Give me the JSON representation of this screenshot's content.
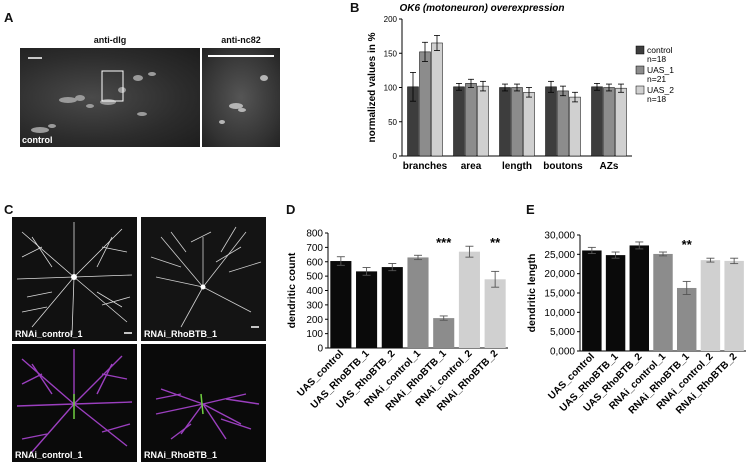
{
  "panels": {
    "a": {
      "letter": "A",
      "title_left": "anti-dlg",
      "title_right": "anti-nc82",
      "corner_label": "control"
    },
    "b": {
      "letter": "B"
    },
    "c": {
      "letter": "C",
      "labels": [
        "RNAi_control_1",
        "RNAi_RhoBTB_1",
        "RNAi_control_1",
        "RNAi_RhoBTB_1"
      ]
    },
    "d": {
      "letter": "D"
    },
    "e": {
      "letter": "E"
    }
  },
  "colors": {
    "black": "#0a0a0a",
    "dark": "#3d3d3d",
    "mid": "#8c8c8c",
    "light": "#d0d0d0",
    "magenta": "#9b3fbf",
    "green": "#6fcf3f"
  },
  "chart_data": [
    {
      "type": "bar",
      "title": "OK6 (motoneuron) overexpression",
      "ylabel": "normalized values in %",
      "categories": [
        "branches",
        "area",
        "length",
        "boutons",
        "AZs"
      ],
      "ylim": [
        0,
        200
      ],
      "yticks": [
        0,
        50,
        100,
        150,
        200
      ],
      "grid": false,
      "legend_position": "right",
      "series": [
        {
          "name": "control n=18",
          "legend_lines": [
            "control",
            "n=18"
          ],
          "color": "#3d3d3d",
          "values": [
            101,
            101,
            100,
            101,
            101
          ],
          "errors": [
            21,
            5,
            5,
            8,
            5
          ]
        },
        {
          "name": "UAS_1 n=21",
          "legend_lines": [
            "UAS_1",
            "n=21"
          ],
          "color": "#8c8c8c",
          "values": [
            152,
            106,
            100,
            95,
            100
          ],
          "errors": [
            14,
            6,
            5,
            7,
            5
          ]
        },
        {
          "name": "UAS_2 n=18",
          "legend_lines": [
            "UAS_2",
            "n=18"
          ],
          "color": "#d0d0d0",
          "values": [
            165,
            102,
            93,
            86,
            99
          ],
          "errors": [
            11,
            7,
            7,
            7,
            6
          ]
        }
      ]
    },
    {
      "type": "bar",
      "title": "",
      "ylabel": "dendritic count",
      "categories": [
        "UAS_control",
        "UAS_RhoBTB_1",
        "UAS_RhoBTB_2",
        "RNAi_control_1",
        "RNAi_RhoBTB_1",
        "RNAi_control_2",
        "RNAi_RhoBTB_2"
      ],
      "values": [
        605,
        533,
        563,
        630,
        208,
        670,
        478
      ],
      "errors": [
        30,
        27,
        25,
        15,
        15,
        38,
        55
      ],
      "bar_colors": [
        "#0a0a0a",
        "#0a0a0a",
        "#0a0a0a",
        "#8c8c8c",
        "#8c8c8c",
        "#d0d0d0",
        "#d0d0d0"
      ],
      "ylim": [
        0,
        800
      ],
      "yticks": [
        "0",
        "100",
        "200",
        "300",
        "400",
        "500",
        "600",
        "700",
        "800"
      ],
      "grid": false,
      "annotations": [
        {
          "category": "RNAi_RhoBTB_1",
          "text": "***"
        },
        {
          "category": "RNAi_RhoBTB_2",
          "text": "**"
        }
      ]
    },
    {
      "type": "bar",
      "title": "",
      "ylabel": "dendritic length",
      "categories": [
        "UAS_control",
        "UAS_RhoBTB_1",
        "UAS_RhoBTB_2",
        "RNAi_control_1",
        "RNAi_RhoBTB_1",
        "RNAi_control_2",
        "RNAi_RhoBTB_2"
      ],
      "values": [
        26000,
        24800,
        27300,
        25100,
        16300,
        23500,
        23300
      ],
      "errors": [
        800,
        800,
        900,
        500,
        1700,
        500,
        700
      ],
      "bar_colors": [
        "#0a0a0a",
        "#0a0a0a",
        "#0a0a0a",
        "#8c8c8c",
        "#8c8c8c",
        "#d0d0d0",
        "#d0d0d0"
      ],
      "ylim": [
        0,
        30000
      ],
      "yticks": [
        "0,000",
        "5,000",
        "10,000",
        "15,000",
        "20,000",
        "25,000",
        "30,000"
      ],
      "grid": false,
      "annotations": [
        {
          "category": "RNAi_RhoBTB_1",
          "text": "**"
        }
      ]
    }
  ]
}
